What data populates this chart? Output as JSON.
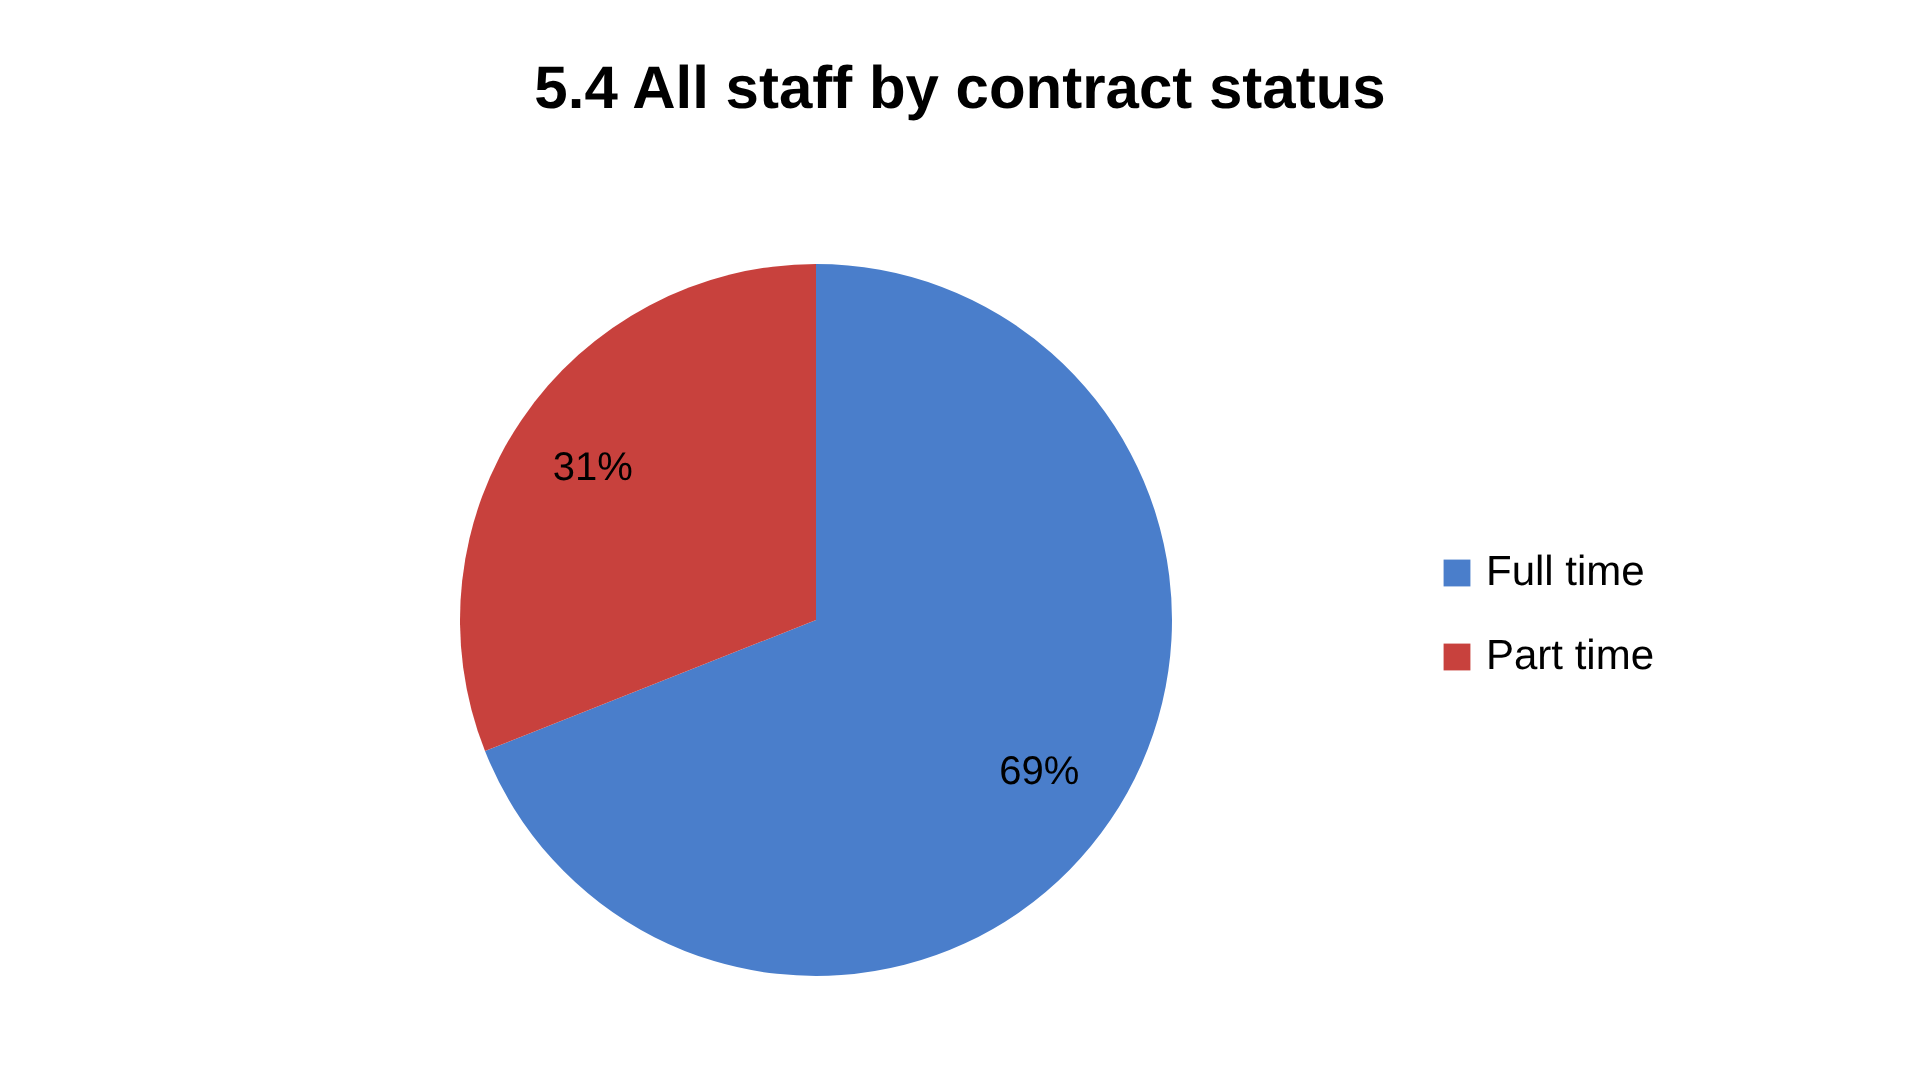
{
  "chart_data": {
    "type": "pie",
    "title": "5.4 All staff by contract status",
    "categories": [
      "Full time",
      "Part time"
    ],
    "values": [
      69,
      31
    ],
    "colors": [
      "#4a7ecb",
      "#c8413d"
    ],
    "value_labels": [
      "69%",
      "31%"
    ],
    "legend": "right"
  }
}
